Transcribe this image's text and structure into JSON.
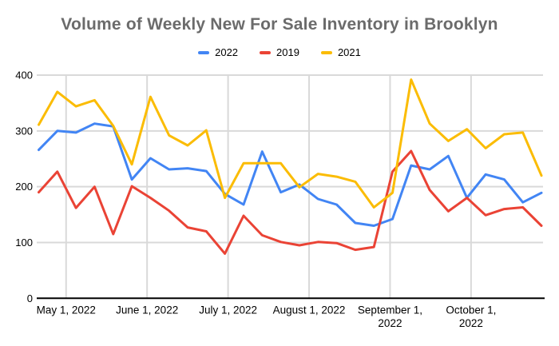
{
  "title": "Volume of Weekly New For Sale Inventory in Brooklyn",
  "chart_data": {
    "type": "line",
    "title": "Volume of Weekly New For Sale Inventory in Brooklyn",
    "legend_position": "top",
    "grid": true,
    "ylim": [
      0,
      400
    ],
    "y_ticks": [
      0,
      100,
      200,
      300,
      400
    ],
    "n_points": 28,
    "x_unit": "week",
    "x_tick_labels": [
      [
        "May 1, 2022"
      ],
      [
        "June 1, 2022"
      ],
      [
        "July 1, 2022"
      ],
      [
        "August 1, 2022"
      ],
      [
        "September 1,",
        "2022"
      ],
      [
        "October 1,",
        "2022"
      ]
    ],
    "x_tick_pos_weeks": [
      1.47,
      5.82,
      10.17,
      14.52,
      18.87,
      23.22
    ],
    "series": [
      {
        "name": "2022",
        "color": "#4285F4",
        "values": [
          266,
          300,
          297,
          313,
          308,
          213,
          251,
          231,
          233,
          228,
          187,
          168,
          263,
          190,
          204,
          178,
          168,
          135,
          130,
          142,
          238,
          231,
          255,
          180,
          222,
          213,
          172,
          189
        ]
      },
      {
        "name": "2019",
        "color": "#EA4335",
        "values": [
          190,
          227,
          162,
          200,
          115,
          201,
          180,
          157,
          127,
          120,
          80,
          148,
          113,
          101,
          95,
          101,
          99,
          87,
          92,
          227,
          264,
          194,
          156,
          180,
          149,
          160,
          163,
          130
        ]
      },
      {
        "name": "2021",
        "color": "#FBBC04",
        "values": [
          311,
          370,
          344,
          355,
          309,
          240,
          361,
          292,
          274,
          301,
          180,
          242,
          242,
          242,
          199,
          223,
          218,
          209,
          163,
          189,
          392,
          313,
          282,
          303,
          269,
          294,
          297,
          220
        ]
      }
    ],
    "colors": {
      "gridline": "#d9d9d9",
      "axis": "#000000",
      "tick_label": "#000000",
      "title": "#6b6b6b"
    }
  }
}
